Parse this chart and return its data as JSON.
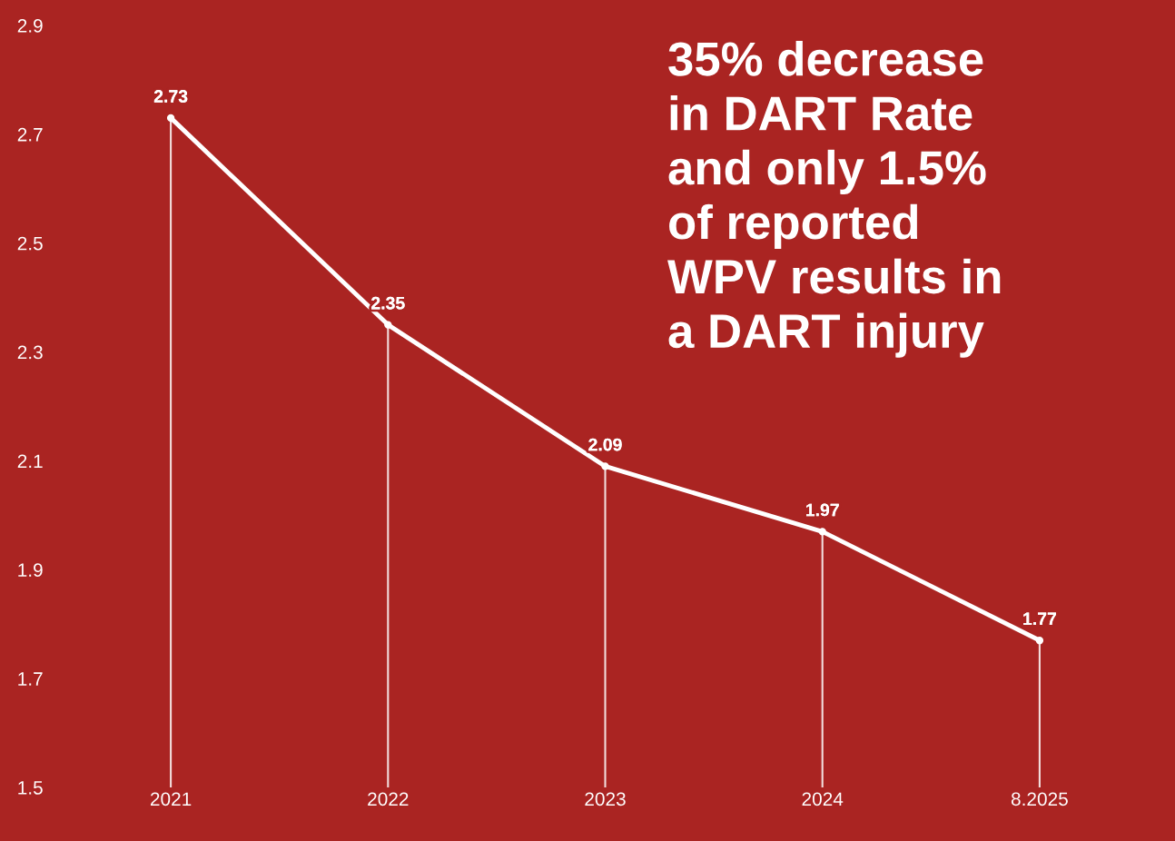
{
  "chart_data": {
    "type": "lollipop",
    "categories": [
      "2021",
      "2022",
      "2023",
      "2024",
      "8.2025"
    ],
    "series": [
      {
        "color": "#ffffff",
        "values": [
          2.73,
          2.35,
          2.09,
          1.97,
          1.77
        ]
      }
    ],
    "ylim": [
      1.5,
      2.9
    ],
    "yticks": [
      1.5,
      1.7,
      1.9,
      2.1,
      2.3,
      2.5,
      2.7,
      2.9
    ],
    "data_labels": true,
    "marker": "circle",
    "line_style": "solid",
    "annotations": [
      "35% decrease\nin DART Rate\nand only 1.5%\nof reported\nWPV results in\na DART injury"
    ]
  }
}
